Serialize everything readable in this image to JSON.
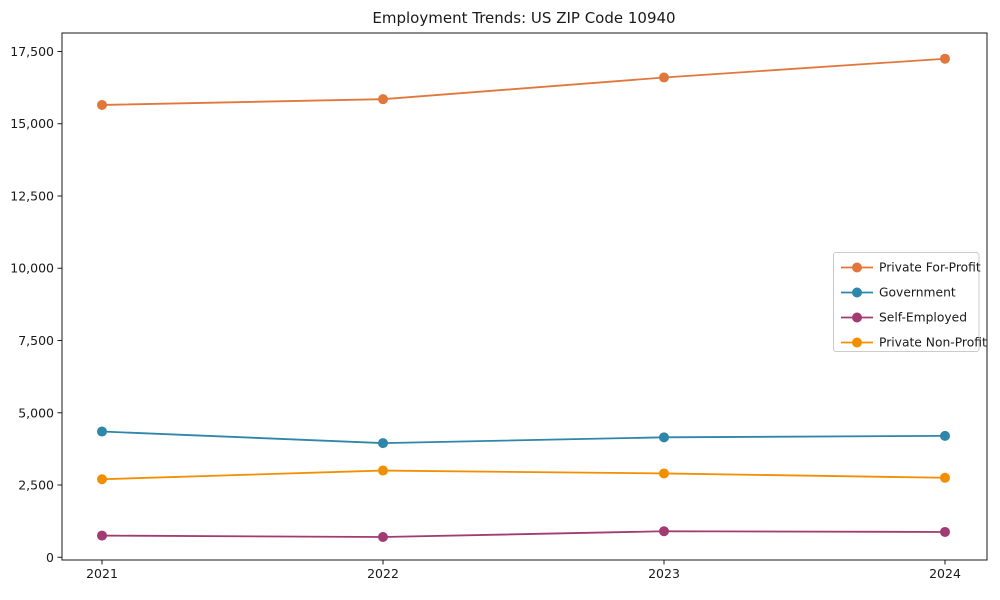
{
  "figure": {
    "title": "Employment Trends: US ZIP Code 10940"
  },
  "chart_data": {
    "type": "line",
    "title": "Employment Trends: US ZIP Code 10940",
    "xlabel": "",
    "ylabel": "",
    "grid": false,
    "marker": "circle",
    "legend_position": "center right",
    "x": [
      2021,
      2022,
      2023,
      2024
    ],
    "x_tick_labels": [
      "2021",
      "2022",
      "2023",
      "2024"
    ],
    "y_ticks": [
      0,
      2500,
      5000,
      7500,
      10000,
      12500,
      15000,
      17500
    ],
    "y_tick_labels": [
      "0",
      "2,500",
      "5,000",
      "7,500",
      "10,000",
      "12,500",
      "15,000",
      "17,500"
    ],
    "ylim": [
      -95,
      18140
    ],
    "series": [
      {
        "name": "Private For-Profit",
        "color": "#E2773C",
        "values": [
          15650,
          15850,
          16600,
          17250
        ]
      },
      {
        "name": "Government",
        "color": "#2E86AB",
        "values": [
          4350,
          3950,
          4150,
          4200
        ]
      },
      {
        "name": "Self-Employed",
        "color": "#A23B72",
        "values": [
          750,
          700,
          900,
          875
        ]
      },
      {
        "name": "Private Non-Profit",
        "color": "#F18F01",
        "values": [
          2700,
          3000,
          2900,
          2750
        ]
      }
    ]
  }
}
